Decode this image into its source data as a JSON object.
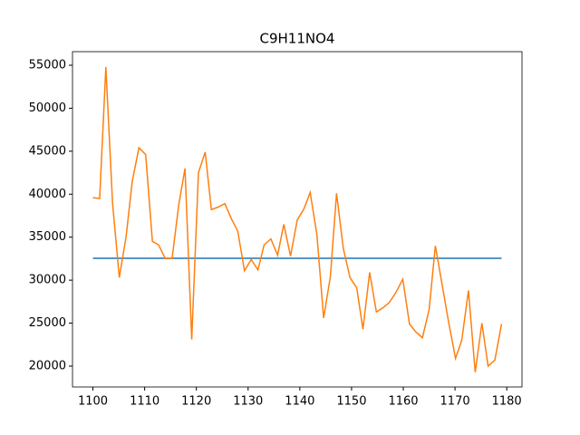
{
  "chart_data": {
    "type": "line",
    "title": "C9H11NO4",
    "series": [
      {
        "color": "#1f77b4",
        "x": [
          1100,
          1179
        ],
        "values": [
          32550,
          32550
        ]
      },
      {
        "color": "#ff7f0e",
        "x": [
          1100,
          1101.3,
          1102.5,
          1103.8,
          1105.1,
          1106.4,
          1107.6,
          1108.9,
          1110.2,
          1111.5,
          1112.7,
          1114.0,
          1115.3,
          1116.6,
          1117.8,
          1119.1,
          1120.4,
          1121.7,
          1122.9,
          1124.2,
          1125.5,
          1126.8,
          1128.0,
          1129.3,
          1130.6,
          1131.9,
          1133.1,
          1134.4,
          1135.7,
          1136.9,
          1138.2,
          1139.5,
          1140.8,
          1142.0,
          1143.3,
          1144.6,
          1145.9,
          1147.1,
          1148.4,
          1149.7,
          1151.0,
          1152.2,
          1153.5,
          1154.8,
          1156.1,
          1157.3,
          1158.6,
          1159.9,
          1161.2,
          1162.4,
          1163.7,
          1165.0,
          1166.2,
          1167.5,
          1168.8,
          1170.1,
          1171.3,
          1172.6,
          1173.9,
          1175.2,
          1176.4,
          1177.7,
          1179.0
        ],
        "values": [
          39600,
          39500,
          54800,
          38900,
          30300,
          35000,
          41500,
          45400,
          44600,
          34500,
          34100,
          32500,
          32500,
          38800,
          43000,
          23100,
          42500,
          44900,
          38200,
          38500,
          38900,
          37100,
          35700,
          31100,
          32400,
          31200,
          34100,
          34800,
          32900,
          36500,
          32800,
          37000,
          38300,
          40200,
          35300,
          25600,
          30400,
          40100,
          33700,
          30300,
          29100,
          24300,
          30900,
          26300,
          26800,
          27400,
          28600,
          30100,
          24900,
          24000,
          23300,
          26600,
          34000,
          29500,
          25000,
          20900,
          23000,
          28800,
          19300,
          25000,
          20000,
          20700,
          24900
        ]
      }
    ],
    "xlim": [
      1096.05,
      1182.95
    ],
    "ylim": [
      17575,
      56580
    ],
    "xticks": [
      1100,
      1110,
      1120,
      1130,
      1140,
      1150,
      1160,
      1170,
      1180
    ],
    "yticks": [
      20000,
      25000,
      30000,
      35000,
      40000,
      45000,
      50000,
      55000
    ]
  }
}
